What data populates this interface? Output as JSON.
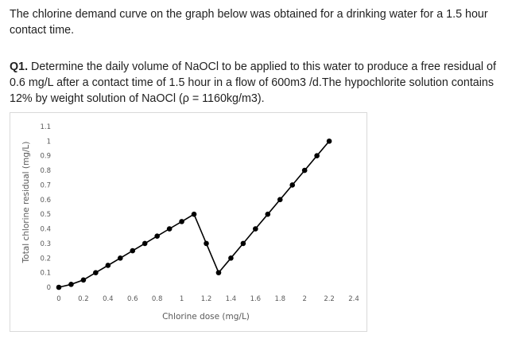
{
  "intro_text": "The chlorine demand curve on the graph below was obtained for a drinking water for a 1.5 hour contact time.",
  "question": {
    "label": "Q1.",
    "text": " Determine the daily volume of NaOCl to be applied to this water to produce a free residual of 0.6 mg/L after a contact time of 1.5 hour in a flow of 600m3 /d.The hypochlorite solution contains 12% by weight solution of NaOCl (ρ = 1160kg/m3)."
  },
  "chart_data": {
    "type": "line",
    "xlabel": "Chlorine dose (mg/L)",
    "ylabel": "Total chlorine residual (mg/L)",
    "xlim": [
      0,
      2.4
    ],
    "ylim": [
      0,
      1.1
    ],
    "x_ticks": [
      "0",
      "0.2",
      "0.4",
      "0.6",
      "0.8",
      "1",
      "1.2",
      "1.4",
      "1.6",
      "1.8",
      "2",
      "2.2",
      "2.4"
    ],
    "y_ticks": [
      "0",
      "0.1",
      "0.2",
      "0.3",
      "0.4",
      "0.5",
      "0.6",
      "0.7",
      "0.8",
      "0.9",
      "1",
      "1.1"
    ],
    "grid": false,
    "series": [
      {
        "color": "#000000",
        "x": [
          0,
          0.1,
          0.2,
          0.3,
          0.4,
          0.5,
          0.6,
          0.7,
          0.8,
          0.9,
          1.0,
          1.1,
          1.2,
          1.3,
          1.4,
          1.5,
          1.6,
          1.7,
          1.8,
          1.9,
          2.0,
          2.1,
          2.2
        ],
        "y": [
          0,
          0.02,
          0.05,
          0.1,
          0.15,
          0.2,
          0.25,
          0.3,
          0.35,
          0.4,
          0.45,
          0.5,
          0.3,
          0.1,
          0.2,
          0.3,
          0.4,
          0.5,
          0.6,
          0.7,
          0.8,
          0.9,
          1.0
        ]
      }
    ]
  }
}
